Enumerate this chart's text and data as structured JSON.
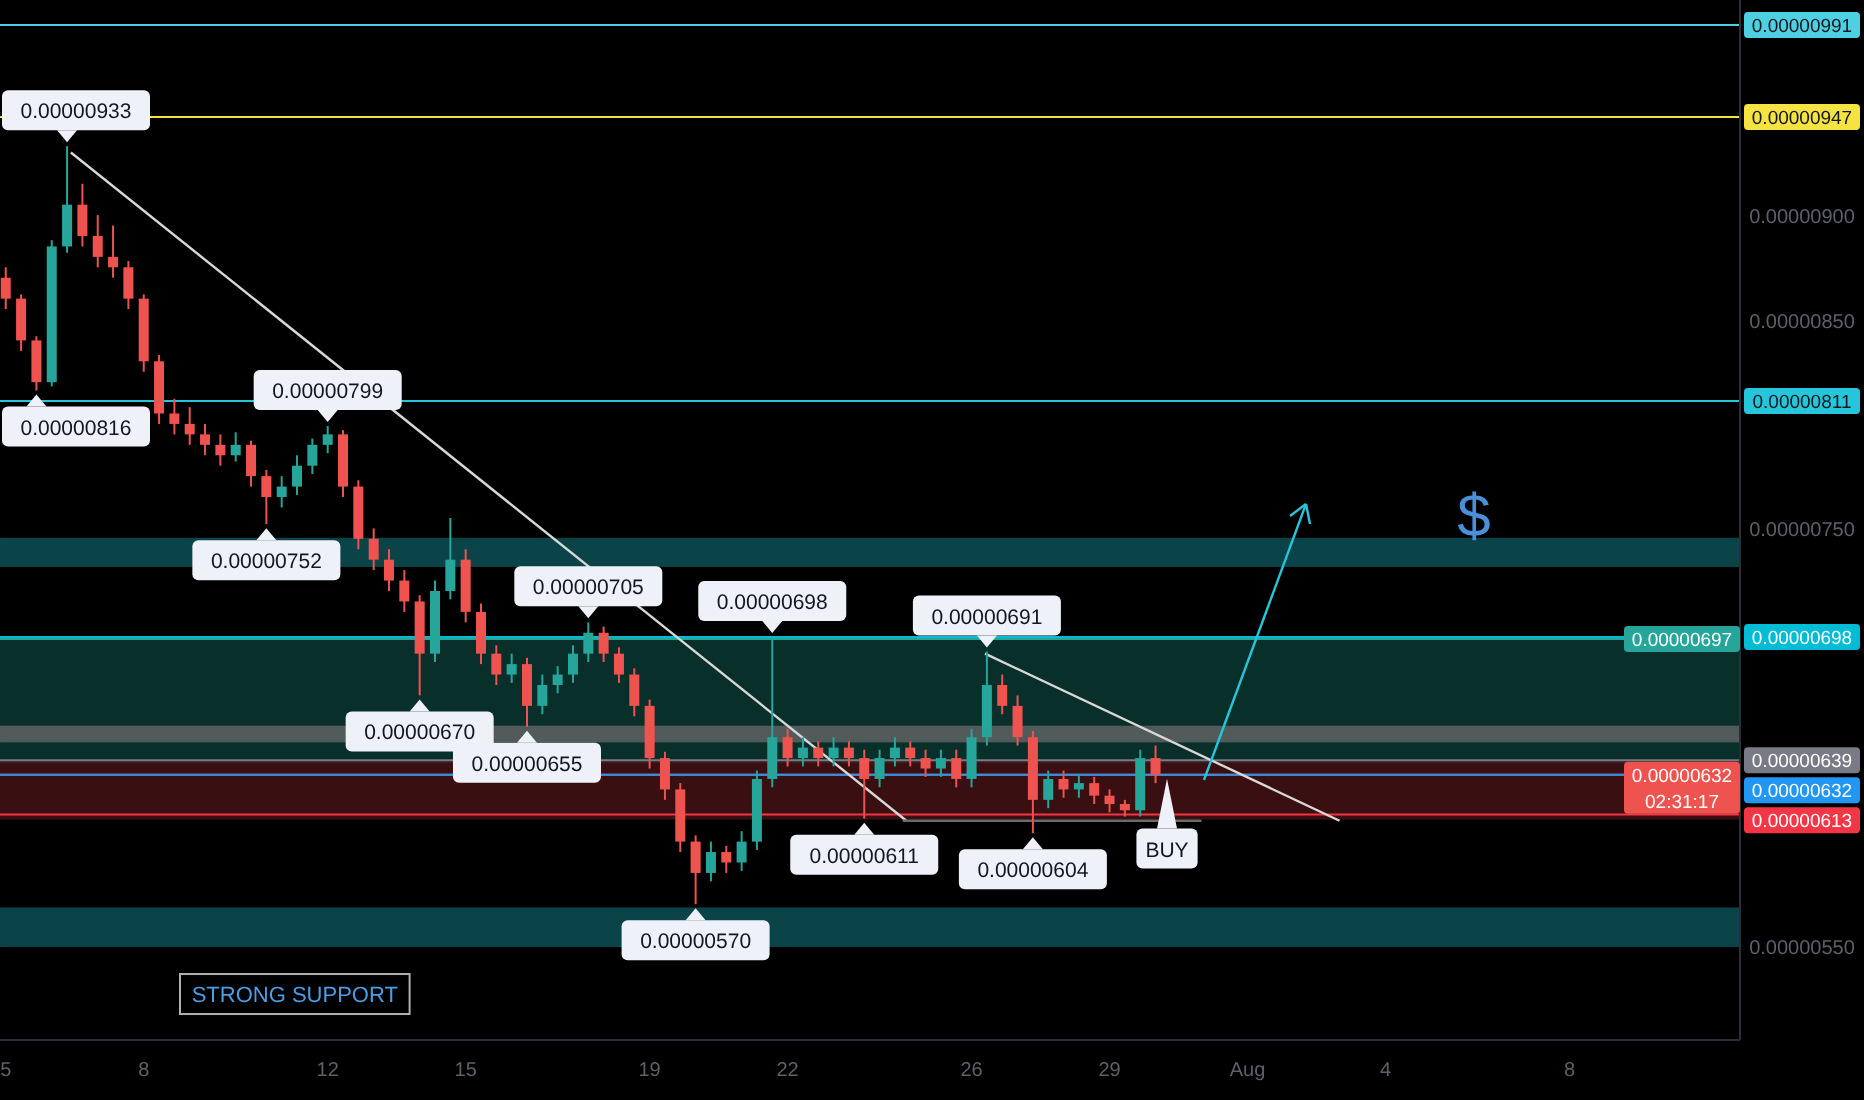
{
  "chart_data": {
    "type": "candlestick",
    "x": [
      "--07-05T00:00",
      "--07-05T08:00",
      "--07-05T16:00",
      "--07-06T00:00",
      "--07-06T08:00",
      "--07-06T16:00",
      "--07-07T00:00",
      "--07-07T08:00",
      "--07-07T16:00",
      "--07-08T00:00",
      "--07-08T08:00",
      "--07-08T16:00",
      "--07-09T00:00",
      "--07-09T08:00",
      "--07-09T16:00",
      "--07-10T00:00",
      "--07-10T08:00",
      "--07-10T16:00",
      "--07-11T00:00",
      "--07-11T08:00",
      "--07-11T16:00",
      "--07-12T00:00",
      "--07-12T08:00",
      "--07-12T16:00",
      "--07-13T00:00",
      "--07-13T08:00",
      "--07-13T16:00",
      "--07-14T00:00",
      "--07-14T08:00",
      "--07-14T16:00",
      "--07-15T00:00",
      "--07-15T08:00",
      "--07-15T16:00",
      "--07-16T00:00",
      "--07-16T08:00",
      "--07-16T16:00",
      "--07-17T00:00",
      "--07-17T08:00",
      "--07-17T16:00",
      "--07-18T00:00",
      "--07-18T08:00",
      "--07-18T16:00",
      "--07-19T00:00",
      "--07-19T08:00",
      "--07-19T16:00",
      "--07-20T00:00",
      "--07-20T08:00",
      "--07-20T16:00",
      "--07-21T00:00",
      "--07-21T08:00",
      "--07-21T16:00",
      "--07-22T00:00",
      "--07-22T08:00",
      "--07-22T16:00",
      "--07-23T00:00",
      "--07-23T08:00",
      "--07-23T16:00",
      "--07-24T00:00",
      "--07-24T08:00",
      "--07-24T16:00",
      "--07-25T00:00",
      "--07-25T08:00",
      "--07-25T16:00",
      "--07-26T00:00",
      "--07-26T08:00",
      "--07-26T16:00",
      "--07-27T00:00",
      "--07-27T08:00",
      "--07-27T16:00",
      "--07-28T00:00",
      "--07-28T08:00",
      "--07-28T16:00",
      "--07-29T00:00",
      "--07-29T08:00",
      "--07-29T16:00",
      "--07-30T00:00"
    ],
    "ohlc": [
      [
        8.7e-06,
        8.75e-06,
        8.55e-06,
        8.6e-06
      ],
      [
        8.6e-06,
        8.62e-06,
        8.35e-06,
        8.4e-06
      ],
      [
        8.4e-06,
        8.42e-06,
        8.16e-06,
        8.2e-06
      ],
      [
        8.2e-06,
        8.88e-06,
        8.18e-06,
        8.85e-06
      ],
      [
        8.85e-06,
        9.33e-06,
        8.82e-06,
        9.05e-06
      ],
      [
        9.05e-06,
        9.15e-06,
        8.85e-06,
        8.9e-06
      ],
      [
        8.9e-06,
        9e-06,
        8.75e-06,
        8.8e-06
      ],
      [
        8.8e-06,
        8.95e-06,
        8.7e-06,
        8.75e-06
      ],
      [
        8.75e-06,
        8.78e-06,
        8.55e-06,
        8.6e-06
      ],
      [
        8.6e-06,
        8.62e-06,
        8.25e-06,
        8.3e-06
      ],
      [
        8.3e-06,
        8.33e-06,
        8e-06,
        8.05e-06
      ],
      [
        8.05e-06,
        8.12e-06,
        7.95e-06,
        8e-06
      ],
      [
        8e-06,
        8.08e-06,
        7.9e-06,
        7.95e-06
      ],
      [
        7.95e-06,
        8e-06,
        7.85e-06,
        7.9e-06
      ],
      [
        7.9e-06,
        7.95e-06,
        7.8e-06,
        7.85e-06
      ],
      [
        7.85e-06,
        7.96e-06,
        7.82e-06,
        7.9e-06
      ],
      [
        7.9e-06,
        7.92e-06,
        7.7e-06,
        7.75e-06
      ],
      [
        7.75e-06,
        7.78e-06,
        7.52e-06,
        7.65e-06
      ],
      [
        7.65e-06,
        7.75e-06,
        7.6e-06,
        7.7e-06
      ],
      [
        7.7e-06,
        7.85e-06,
        7.66e-06,
        7.8e-06
      ],
      [
        7.8e-06,
        7.93e-06,
        7.76e-06,
        7.9e-06
      ],
      [
        7.9e-06,
        7.99e-06,
        7.86e-06,
        7.95e-06
      ],
      [
        7.95e-06,
        7.97e-06,
        7.65e-06,
        7.7e-06
      ],
      [
        7.7e-06,
        7.73e-06,
        7.4e-06,
        7.45e-06
      ],
      [
        7.45e-06,
        7.5e-06,
        7.3e-06,
        7.35e-06
      ],
      [
        7.35e-06,
        7.4e-06,
        7.2e-06,
        7.25e-06
      ],
      [
        7.25e-06,
        7.3e-06,
        7.1e-06,
        7.15e-06
      ],
      [
        7.15e-06,
        7.18e-06,
        6.7e-06,
        6.9e-06
      ],
      [
        6.9e-06,
        7.25e-06,
        6.86e-06,
        7.2e-06
      ],
      [
        7.2e-06,
        7.55e-06,
        7.16e-06,
        7.35e-06
      ],
      [
        7.35e-06,
        7.4e-06,
        7.05e-06,
        7.1e-06
      ],
      [
        7.1e-06,
        7.14e-06,
        6.85e-06,
        6.9e-06
      ],
      [
        6.9e-06,
        6.94e-06,
        6.75e-06,
        6.8e-06
      ],
      [
        6.8e-06,
        6.9e-06,
        6.76e-06,
        6.85e-06
      ],
      [
        6.85e-06,
        6.88e-06,
        6.55e-06,
        6.65e-06
      ],
      [
        6.65e-06,
        6.8e-06,
        6.61e-06,
        6.75e-06
      ],
      [
        6.75e-06,
        6.84e-06,
        6.71e-06,
        6.8e-06
      ],
      [
        6.8e-06,
        6.94e-06,
        6.76e-06,
        6.9e-06
      ],
      [
        6.9e-06,
        7.05e-06,
        6.86e-06,
        7e-06
      ],
      [
        7e-06,
        7.03e-06,
        6.86e-06,
        6.9e-06
      ],
      [
        6.9e-06,
        6.93e-06,
        6.76e-06,
        6.8e-06
      ],
      [
        6.8e-06,
        6.83e-06,
        6.6e-06,
        6.65e-06
      ],
      [
        6.65e-06,
        6.68e-06,
        6.35e-06,
        6.4e-06
      ],
      [
        6.4e-06,
        6.43e-06,
        6.2e-06,
        6.25e-06
      ],
      [
        6.25e-06,
        6.28e-06,
        5.95e-06,
        6e-06
      ],
      [
        6e-06,
        6.03e-06,
        5.7e-06,
        5.85e-06
      ],
      [
        5.85e-06,
        6e-06,
        5.81e-06,
        5.95e-06
      ],
      [
        5.95e-06,
        5.98e-06,
        5.85e-06,
        5.9e-06
      ],
      [
        5.9e-06,
        6.05e-06,
        5.86e-06,
        6e-06
      ],
      [
        6e-06,
        6.34e-06,
        5.96e-06,
        6.3e-06
      ],
      [
        6.3e-06,
        6.98e-06,
        6.26e-06,
        6.5e-06
      ],
      [
        6.5e-06,
        6.54e-06,
        6.36e-06,
        6.4e-06
      ],
      [
        6.4e-06,
        6.5e-06,
        6.36e-06,
        6.45e-06
      ],
      [
        6.45e-06,
        6.48e-06,
        6.36e-06,
        6.4e-06
      ],
      [
        6.4e-06,
        6.5e-06,
        6.36e-06,
        6.45e-06
      ],
      [
        6.45e-06,
        6.48e-06,
        6.36e-06,
        6.4e-06
      ],
      [
        6.4e-06,
        6.44e-06,
        6.11e-06,
        6.3e-06
      ],
      [
        6.3e-06,
        6.44e-06,
        6.26e-06,
        6.4e-06
      ],
      [
        6.4e-06,
        6.5e-06,
        6.36e-06,
        6.45e-06
      ],
      [
        6.45e-06,
        6.48e-06,
        6.36e-06,
        6.4e-06
      ],
      [
        6.4e-06,
        6.44e-06,
        6.31e-06,
        6.35e-06
      ],
      [
        6.35e-06,
        6.44e-06,
        6.31e-06,
        6.4e-06
      ],
      [
        6.4e-06,
        6.44e-06,
        6.26e-06,
        6.3e-06
      ],
      [
        6.3e-06,
        6.54e-06,
        6.26e-06,
        6.5e-06
      ],
      [
        6.5e-06,
        6.91e-06,
        6.46e-06,
        6.75e-06
      ],
      [
        6.75e-06,
        6.8e-06,
        6.61e-06,
        6.65e-06
      ],
      [
        6.65e-06,
        6.7e-06,
        6.46e-06,
        6.5e-06
      ],
      [
        6.5e-06,
        6.53e-06,
        6.04e-06,
        6.2e-06
      ],
      [
        6.2e-06,
        6.34e-06,
        6.16e-06,
        6.3e-06
      ],
      [
        6.3e-06,
        6.34e-06,
        6.21e-06,
        6.25e-06
      ],
      [
        6.25e-06,
        6.32e-06,
        6.21e-06,
        6.28e-06
      ],
      [
        6.28e-06,
        6.31e-06,
        6.18e-06,
        6.22e-06
      ],
      [
        6.22e-06,
        6.25e-06,
        6.14e-06,
        6.18e-06
      ],
      [
        6.18e-06,
        6.2e-06,
        6.12e-06,
        6.15e-06
      ],
      [
        6.15e-06,
        6.44e-06,
        6.12e-06,
        6.4e-06
      ],
      [
        6.4e-06,
        6.46e-06,
        6.28e-06,
        6.32e-06
      ]
    ],
    "series": [
      {
        "type": "line",
        "color": "#d8d8d8",
        "x": [
          "--07-06T10:00",
          "--07-24T14:00"
        ],
        "values": [
          9.3e-06,
          6.1e-06
        ]
      },
      {
        "type": "line",
        "color": "#d8d8d8",
        "x": [
          "--07-26T07:00",
          "--08-03T00:00"
        ],
        "values": [
          6.9e-06,
          6.1e-06
        ]
      },
      {
        "type": "line",
        "color": "#6a6a6a",
        "x": [
          "--07-24T12:00",
          "--07-31T00:00"
        ],
        "values": [
          6.1e-06,
          6.1e-06
        ]
      }
    ],
    "xlim": [
      "--07-04T21:00",
      "--08-11T17:00"
    ],
    "xticks": [
      {
        "value": "--07-05",
        "label": "5"
      },
      {
        "value": "--07-08",
        "label": "8"
      },
      {
        "value": "--07-12",
        "label": "12"
      },
      {
        "value": "--07-15",
        "label": "15"
      },
      {
        "value": "--07-19",
        "label": "19"
      },
      {
        "value": "--07-22",
        "label": "22"
      },
      {
        "value": "--07-26",
        "label": "26"
      },
      {
        "value": "--07-29",
        "label": "29"
      },
      {
        "value": "--08-01",
        "label": "Aug"
      },
      {
        "value": "--08-04",
        "label": "4"
      },
      {
        "value": "--08-08",
        "label": "8"
      }
    ],
    "ylim": [
      5.05e-06,
      1.003e-05
    ],
    "yticks": [
      {
        "value": 5.5e-06,
        "label": "0.00000550"
      },
      {
        "value": 7.5e-06,
        "label": "0.00000750"
      },
      {
        "value": 8.5e-06,
        "label": "0.00000850"
      },
      {
        "value": 9e-06,
        "label": "0.00000900"
      }
    ],
    "bands": [
      {
        "axis": "y",
        "from": 5.5e-06,
        "to": 5.68e-06,
        "label": "STRONG SUPPORT",
        "color": "#0e5a60"
      },
      {
        "axis": "y",
        "from": 7.32e-06,
        "to": 7.45e-06,
        "color": "#0e5a60"
      },
      {
        "axis": "y",
        "from": 6.38e-06,
        "to": 6.97e-06,
        "color": "#0c3f3a"
      },
      {
        "axis": "y",
        "from": 6.11e-06,
        "to": 6.38e-06,
        "color": "#4d1517"
      },
      {
        "axis": "y",
        "from": 6.48e-06,
        "to": 6.55e-06,
        "color": "#6a6a6a"
      }
    ],
    "ref_lines": [
      {
        "axis": "y",
        "value": 9.91e-06,
        "label": "0.00000991",
        "color": "#4dd0e1"
      },
      {
        "axis": "y",
        "value": 9.47e-06,
        "label": "0.00000947",
        "color": "#f5e342"
      },
      {
        "axis": "y",
        "value": 8.11e-06,
        "label": "0.00000811",
        "color": "#26c6da"
      },
      {
        "axis": "y",
        "value": 6.98e-06,
        "label": "0.00000698",
        "color": "#00bcd4"
      },
      {
        "axis": "y",
        "value": 6.97e-06,
        "label": "0.00000697",
        "color": "#26a69a"
      },
      {
        "axis": "y",
        "value": 6.39e-06,
        "label": "0.00000639",
        "color": "#787b86"
      },
      {
        "axis": "y",
        "value": 6.32e-06,
        "label": "0.00000632\n02:31:17",
        "color": "#ef5350"
      },
      {
        "axis": "y",
        "value": 6.32e-06,
        "label": "0.00000632",
        "color": "#2196f3"
      },
      {
        "axis": "y",
        "value": 6.13e-06,
        "label": "0.00000613",
        "color": "#f23645"
      }
    ],
    "annotations": [
      {
        "text": "0.00000933",
        "x": "--07-06T08:00",
        "y": 9.33e-06
      },
      {
        "text": "0.00000816",
        "x": "--07-05T16:00",
        "y": 8.16e-06
      },
      {
        "text": "0.00000799",
        "x": "--07-12T00:00",
        "y": 7.99e-06
      },
      {
        "text": "0.00000752",
        "x": "--07-10T16:00",
        "y": 7.52e-06
      },
      {
        "text": "0.00000705",
        "x": "--07-17T16:00",
        "y": 7.05e-06
      },
      {
        "text": "0.00000670",
        "x": "--07-14T00:00",
        "y": 6.7e-06
      },
      {
        "text": "0.00000655",
        "x": "--07-16T08:00",
        "y": 6.55e-06
      },
      {
        "text": "0.00000698",
        "x": "--07-21T16:00",
        "y": 6.98e-06
      },
      {
        "text": "0.00000611",
        "x": "--07-23T16:00",
        "y": 6.11e-06
      },
      {
        "text": "0.00000691",
        "x": "--07-26T08:00",
        "y": 6.91e-06
      },
      {
        "text": "0.00000604",
        "x": "--07-27T08:00",
        "y": 6.04e-06
      },
      {
        "text": "0.00000570",
        "x": "--07-20T00:00",
        "y": 5.7e-06
      },
      {
        "text": "BUY",
        "x": "--07-30T06:00",
        "y": 6.32e-06
      },
      "$"
    ]
  }
}
